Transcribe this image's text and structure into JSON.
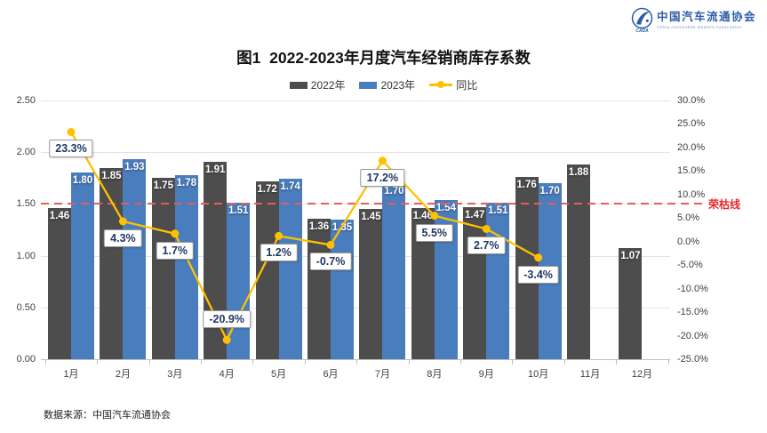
{
  "header": {
    "logo": {
      "org_cn": "中国汽车流通协会",
      "org_en": "China Automobile Dealers Association",
      "abbr": "CADA"
    },
    "title": "图1  2022-2023年月度汽车经销商库存系数"
  },
  "legend": [
    {
      "label": "2022年",
      "type": "bar",
      "color": "#4d4d4d"
    },
    {
      "label": "2023年",
      "type": "bar",
      "color": "#4a7dbd"
    },
    {
      "label": "同比",
      "type": "line",
      "color": "#ffc000"
    }
  ],
  "footer": {
    "source": "数据来源：中国汽车流通协会"
  },
  "chart_data": {
    "type": "bar",
    "title": "图1  2022-2023年月度汽车经销商库存系数",
    "categories": [
      "1月",
      "2月",
      "3月",
      "4月",
      "5月",
      "6月",
      "7月",
      "8月",
      "9月",
      "10月",
      "11月",
      "12月"
    ],
    "series": [
      {
        "name": "2022年",
        "type": "bar",
        "axis": "left",
        "color": "#4d4d4d",
        "values": [
          1.46,
          1.85,
          1.75,
          1.91,
          1.72,
          1.36,
          1.45,
          1.46,
          1.47,
          1.76,
          1.88,
          1.07
        ]
      },
      {
        "name": "2023年",
        "type": "bar",
        "axis": "left",
        "color": "#4a7dbd",
        "values": [
          1.8,
          1.93,
          1.78,
          1.51,
          1.74,
          1.35,
          1.7,
          1.54,
          1.51,
          1.7,
          null,
          null
        ]
      },
      {
        "name": "同比",
        "type": "line",
        "axis": "right",
        "color": "#ffc000",
        "values": [
          23.3,
          4.3,
          1.7,
          -20.9,
          1.2,
          -0.7,
          17.2,
          5.5,
          2.7,
          -3.4,
          null,
          null
        ],
        "labels": [
          "23.3%",
          "4.3%",
          "1.7%",
          "-20.9%",
          "1.2%",
          "-0.7%",
          "17.2%",
          "5.5%",
          "2.7%",
          "-3.4%",
          null,
          null
        ],
        "label_side": [
          "below",
          "below",
          "below",
          "above",
          "below",
          "below",
          "below",
          "below",
          "below",
          "below",
          null,
          null
        ]
      }
    ],
    "left_axis": {
      "min": 0,
      "max": 2.5,
      "step": 0.5,
      "ticks": [
        "2.50",
        "2.00",
        "1.50",
        "1.00",
        "0.50",
        "0.00"
      ]
    },
    "right_axis": {
      "min": -25,
      "max": 30,
      "step": 5,
      "ticks": [
        "30.0%",
        "25.0%",
        "20.0%",
        "15.0%",
        "10.0%",
        "5.0%",
        "0.0%",
        "-5.0%",
        "-10.0%",
        "-15.0%",
        "-20.0%",
        "-25.0%"
      ]
    },
    "reference_line": {
      "value": 1.5,
      "axis": "left",
      "label": "荣枯线",
      "line_color": "#e65c5c",
      "label_color": "#e02b2b"
    },
    "grid": true,
    "legend_position": "top"
  }
}
